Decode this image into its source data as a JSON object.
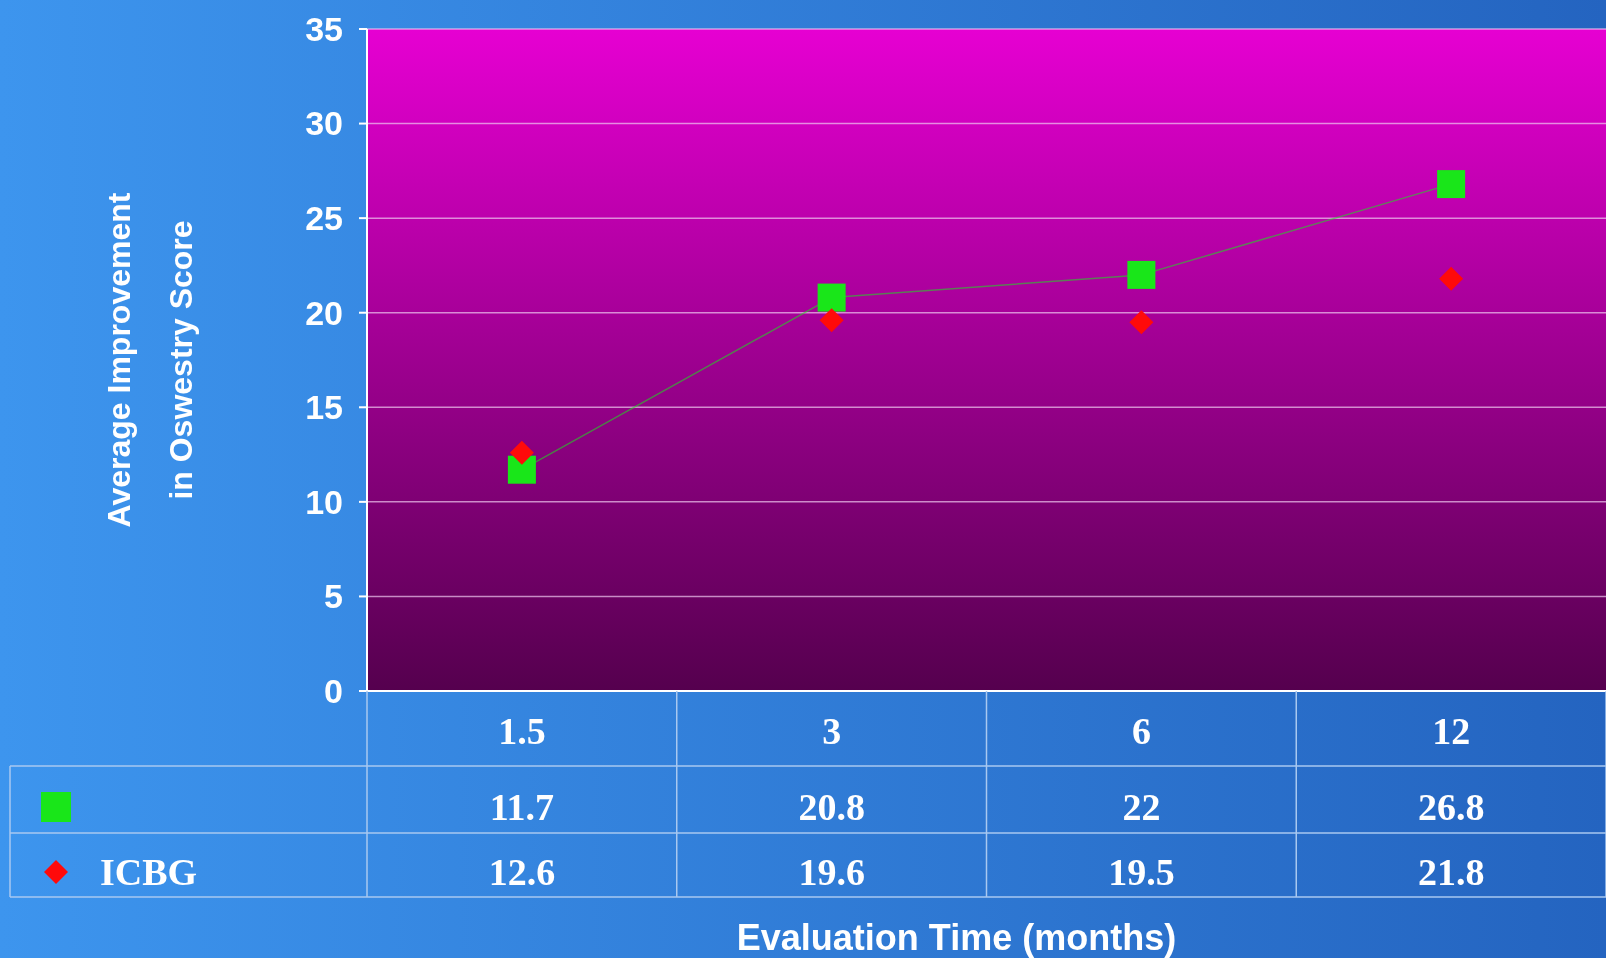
{
  "chart_data": {
    "type": "line",
    "ylabel": "Average Improvement\nin Oswestry Score",
    "xlabel": "Evaluation Time (months)",
    "categories": [
      "1.5",
      "3",
      "6",
      "12"
    ],
    "series": [
      {
        "color": "#19e619",
        "marker": "square",
        "values": [
          11.7,
          20.8,
          22,
          26.8
        ]
      },
      {
        "type": "scatter",
        "name": "ICBG",
        "color": "#ff0a0a",
        "marker": "diamond",
        "values": [
          12.6,
          19.6,
          19.5,
          21.8
        ]
      }
    ],
    "ylim": [
      0,
      35
    ],
    "yticks": [
      0,
      5,
      10,
      15,
      20,
      25,
      30,
      35
    ],
    "grid": "y",
    "data_labels": true,
    "legend": "bottom"
  }
}
